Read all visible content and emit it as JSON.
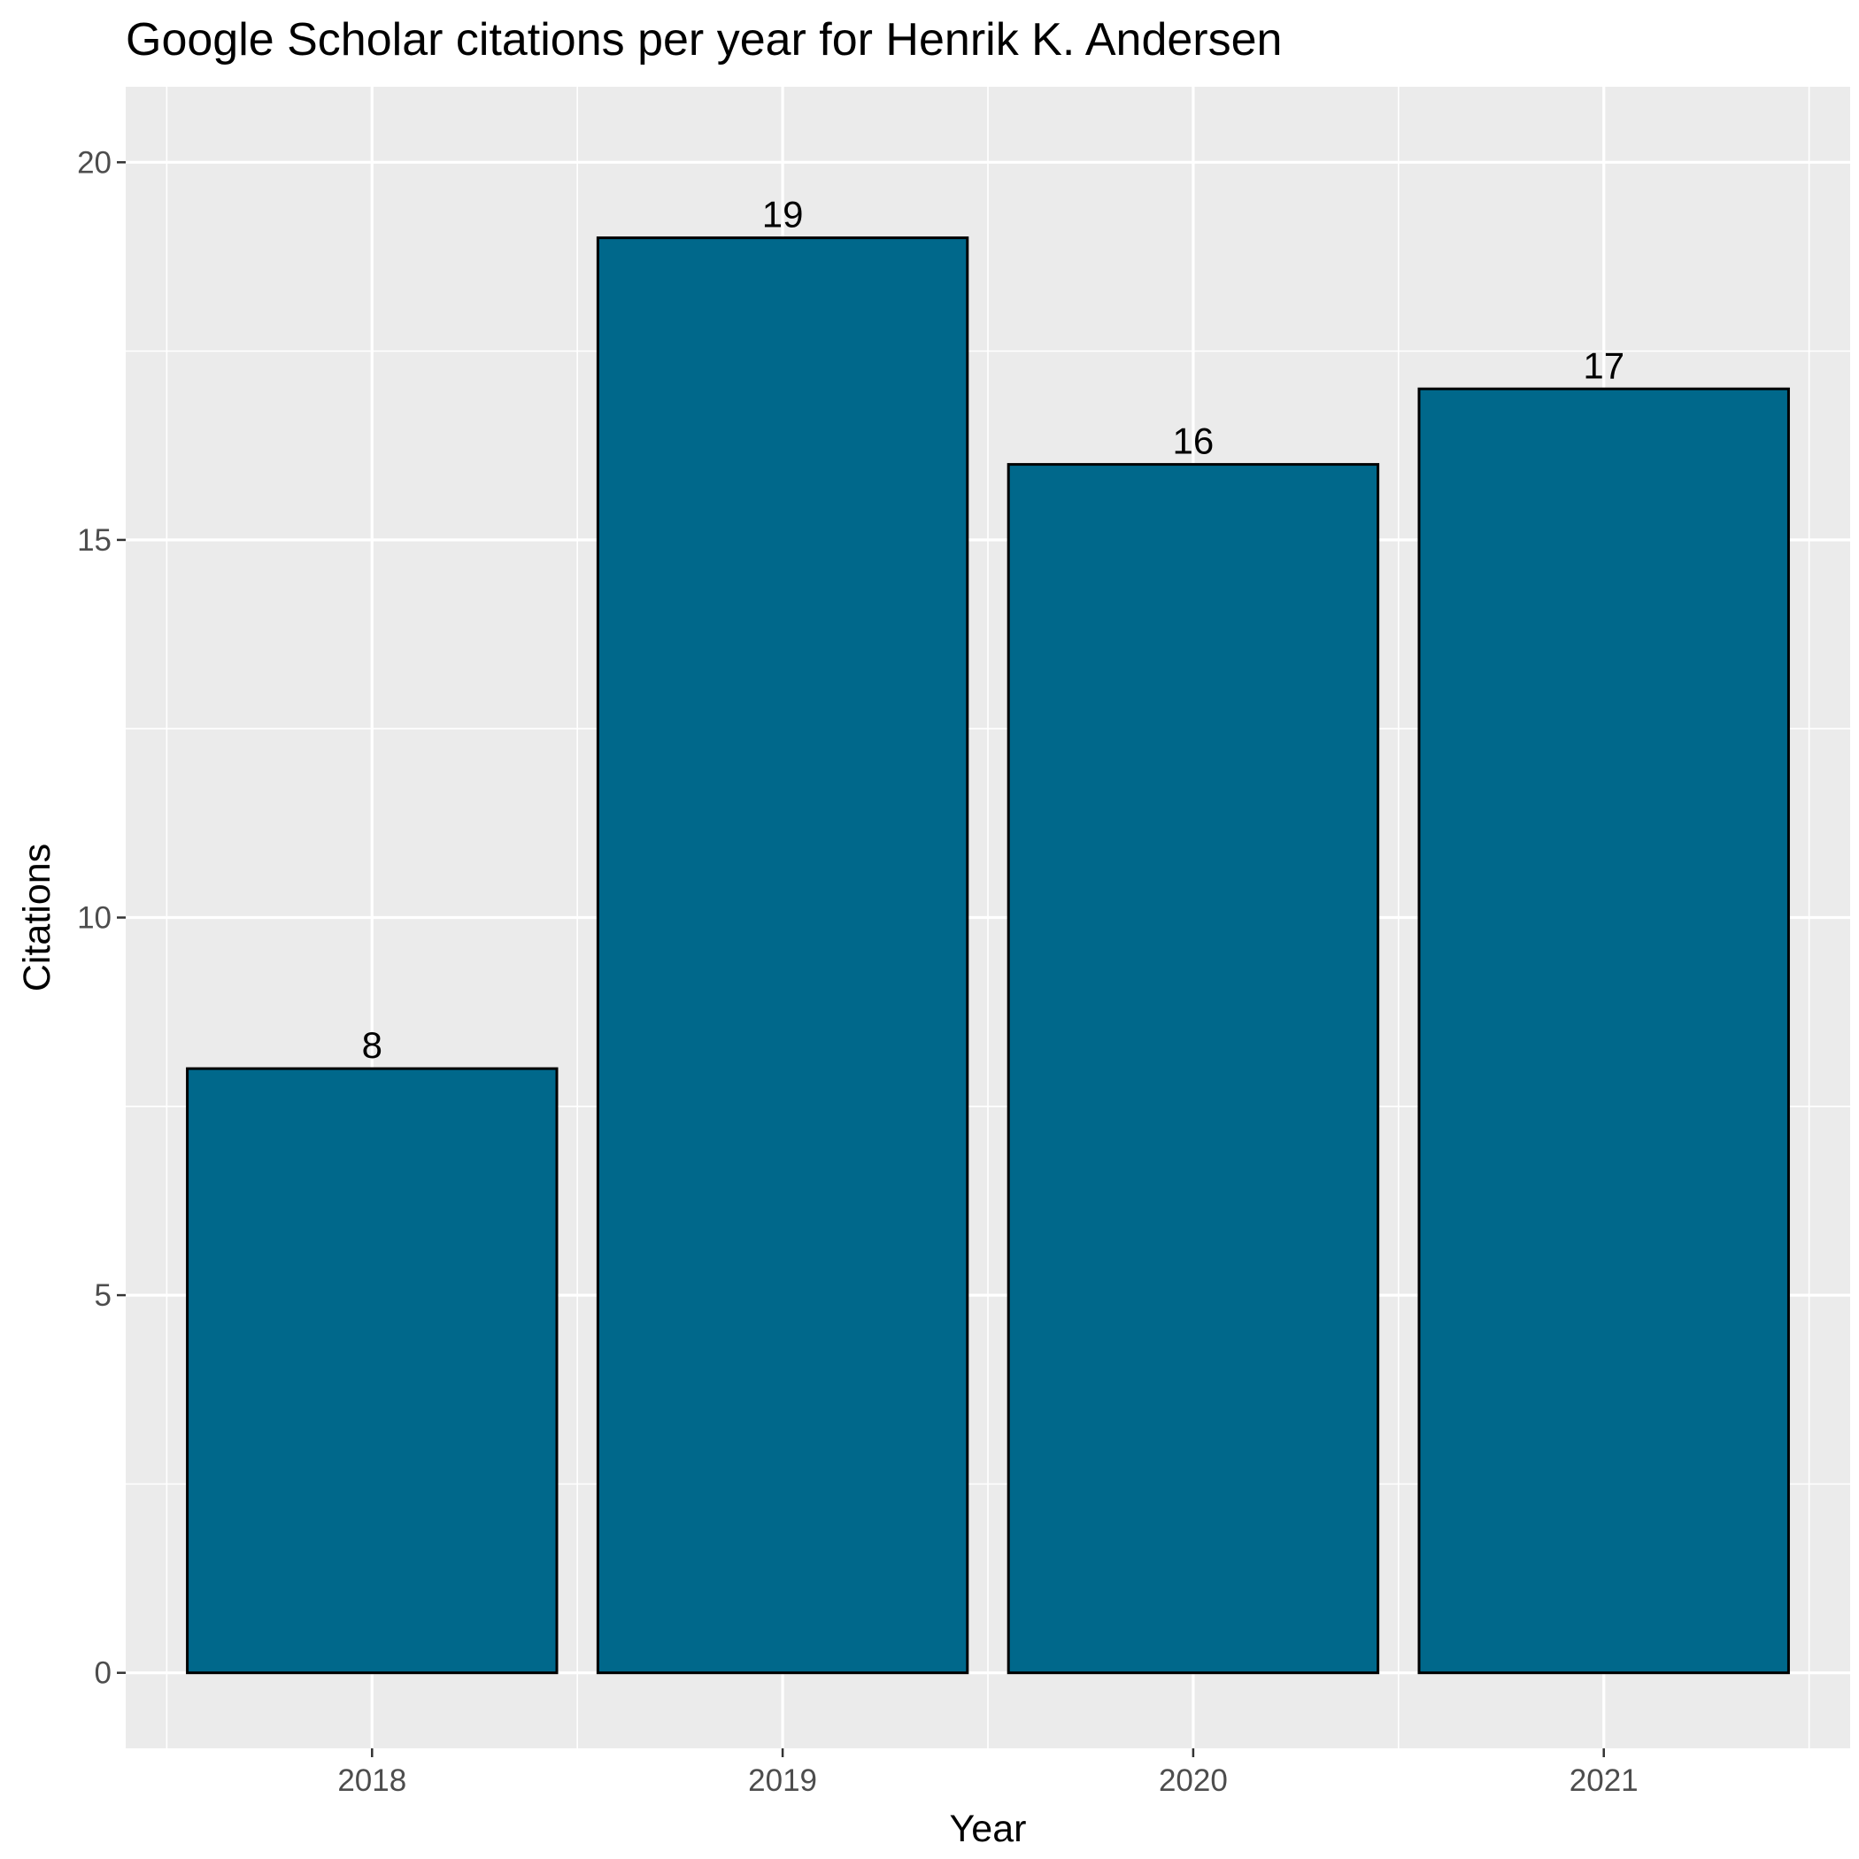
{
  "chart_data": {
    "type": "bar",
    "title": "Google Scholar citations per year for Henrik K. Andersen",
    "xlabel": "Year",
    "ylabel": "Citations",
    "categories": [
      "2018",
      "2019",
      "2020",
      "2021"
    ],
    "values": [
      8,
      19,
      16,
      17
    ],
    "data_labels": [
      "8",
      "19",
      "16",
      "17"
    ],
    "ylim": [
      -1,
      21
    ],
    "y_ticks": [
      0,
      5,
      10,
      15,
      20
    ],
    "y_tick_labels": [
      "0",
      "5",
      "10",
      "15",
      "20"
    ],
    "grid": true,
    "legend": "none",
    "colors": {
      "bar_fill": "#00688B",
      "bar_outline": "#000000",
      "panel_background": "#EBEBEB",
      "grid_line": "#FFFFFF"
    }
  }
}
